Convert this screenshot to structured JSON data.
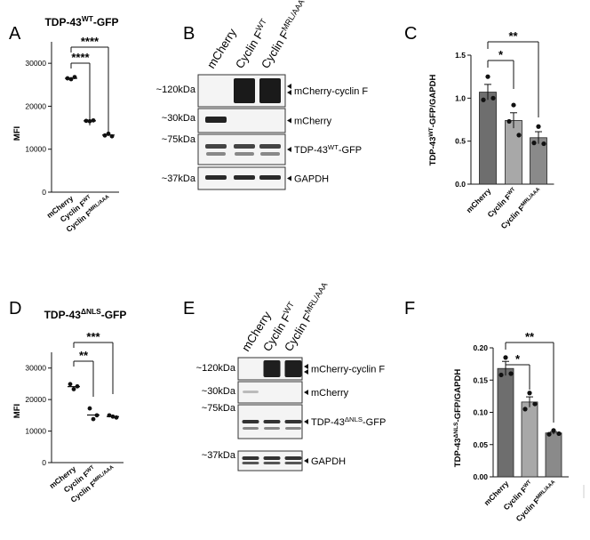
{
  "panels": {
    "A": {
      "letter": "A",
      "title": "TDP-43",
      "title_sup": "WT",
      "title_suffix": "-GFP",
      "ylabel": "MFI",
      "yticks": [
        "0",
        "10000",
        "20000",
        "30000"
      ],
      "xcats": [
        {
          "base": "mCherry",
          "sup": ""
        },
        {
          "base": "Cyclin F",
          "sup": "WT"
        },
        {
          "base": "Cyclin F",
          "sup": "MRL/AAA"
        }
      ],
      "sig": [
        "****",
        "****"
      ]
    },
    "B": {
      "letter": "B",
      "lanes": [
        {
          "base": "mCherry",
          "sup": ""
        },
        {
          "base": "Cyclin F",
          "sup": "WT"
        },
        {
          "base": "Cyclin F",
          "sup": "MRL/AAA"
        }
      ],
      "mw": [
        "~120kDa",
        "~30kDa",
        "~75kDa",
        "~37kDa"
      ],
      "bands": [
        {
          "base": "mCherry-cyclin F",
          "sup": "",
          "suffix": ""
        },
        {
          "base": "mCherry",
          "sup": "",
          "suffix": ""
        },
        {
          "base": "TDP-43",
          "sup": "WT",
          "suffix": "-GFP"
        },
        {
          "base": "GAPDH",
          "sup": "",
          "suffix": ""
        }
      ]
    },
    "C": {
      "letter": "C",
      "ylabel_base": "TDP-43",
      "ylabel_sup": "WT",
      "ylabel_suffix": "-GFP/GAPDH",
      "yticks": [
        "0.0",
        "0.5",
        "1.0",
        "1.5"
      ],
      "xcats": [
        {
          "base": "mCherry",
          "sup": ""
        },
        {
          "base": "Cyclin F",
          "sup": "WT"
        },
        {
          "base": "Cyclin F",
          "sup": "MRL/AAA"
        }
      ],
      "sig": [
        "*",
        "**"
      ]
    },
    "D": {
      "letter": "D",
      "title": "TDP-43",
      "title_sup": "ΔNLS",
      "title_suffix": "-GFP",
      "ylabel": "MFI",
      "yticks": [
        "0",
        "10000",
        "20000",
        "30000"
      ],
      "xcats": [
        {
          "base": "mCherry",
          "sup": ""
        },
        {
          "base": "Cyclin F",
          "sup": "WT"
        },
        {
          "base": "Cyclin F",
          "sup": "MRL/AAA"
        }
      ],
      "sig": [
        "**",
        "***"
      ]
    },
    "E": {
      "letter": "E",
      "lanes": [
        {
          "base": "mCherry",
          "sup": ""
        },
        {
          "base": "Cyclin F",
          "sup": "WT"
        },
        {
          "base": "Cyclin F",
          "sup": "MRL/AAA"
        }
      ],
      "mw": [
        "~120kDa",
        "~30kDa",
        "~75kDa",
        "~37kDa"
      ],
      "bands": [
        {
          "base": "mCherry-cyclin F",
          "sup": "",
          "suffix": ""
        },
        {
          "base": "mCherry",
          "sup": "",
          "suffix": ""
        },
        {
          "base": "TDP-43",
          "sup": "ΔNLS",
          "suffix": "-GFP"
        },
        {
          "base": "GAPDH",
          "sup": "",
          "suffix": ""
        }
      ]
    },
    "F": {
      "letter": "F",
      "ylabel_base": "TDP-43",
      "ylabel_sup": "ΔNLS",
      "ylabel_suffix": "-GFP/GAPDH",
      "yticks": [
        "0.00",
        "0.05",
        "0.10",
        "0.15",
        "0.20"
      ],
      "xcats": [
        {
          "base": "mCherry",
          "sup": ""
        },
        {
          "base": "Cyclin F",
          "sup": "WT"
        },
        {
          "base": "Cyclin F",
          "sup": "MRL/AAA"
        }
      ],
      "sig": [
        "*",
        "**"
      ]
    }
  },
  "chart_data": [
    {
      "panel": "A",
      "type": "scatter",
      "categories": [
        "mCherry",
        "Cyclin F WT",
        "Cyclin F MRL/AAA"
      ],
      "points": [
        [
          26500,
          26300,
          26800
        ],
        [
          16600,
          16500,
          16700
        ],
        [
          13200,
          13600,
          13000
        ]
      ],
      "means": [
        26500,
        16600,
        13300
      ],
      "ylim": [
        0,
        35000
      ]
    },
    {
      "panel": "C",
      "type": "bar",
      "categories": [
        "mCherry",
        "Cyclin F WT",
        "Cyclin F MRL/AAA"
      ],
      "values": [
        1.07,
        0.74,
        0.54
      ],
      "errors": [
        0.09,
        0.09,
        0.07
      ],
      "points": [
        [
          1.25,
          0.98,
          1.0
        ],
        [
          0.92,
          0.73,
          0.57
        ],
        [
          0.67,
          0.48,
          0.47
        ]
      ],
      "bar_colors": [
        "#6e6e6e",
        "#a8a8a8",
        "#8a8a8a"
      ],
      "ylim": [
        0,
        1.5
      ]
    },
    {
      "panel": "D",
      "type": "scatter",
      "categories": [
        "mCherry",
        "Cyclin F WT",
        "Cyclin F MRL/AAA"
      ],
      "points": [
        [
          24900,
          23300,
          24200
        ],
        [
          17200,
          13800,
          15000
        ],
        [
          15000,
          14600,
          14300
        ]
      ],
      "means": [
        24100,
        15100,
        14600
      ],
      "ylim": [
        0,
        35000
      ]
    },
    {
      "panel": "F",
      "type": "bar",
      "categories": [
        "mCherry",
        "Cyclin F WT",
        "Cyclin F MRL/AAA"
      ],
      "values": [
        0.168,
        0.116,
        0.068
      ],
      "errors": [
        0.011,
        0.008,
        0.002
      ],
      "points": [
        [
          0.185,
          0.158,
          0.16
        ],
        [
          0.13,
          0.105,
          0.113
        ],
        [
          0.072,
          0.066,
          0.067
        ]
      ],
      "bar_colors": [
        "#6e6e6e",
        "#a8a8a8",
        "#8a8a8a"
      ],
      "ylim": [
        0,
        0.2
      ]
    }
  ]
}
